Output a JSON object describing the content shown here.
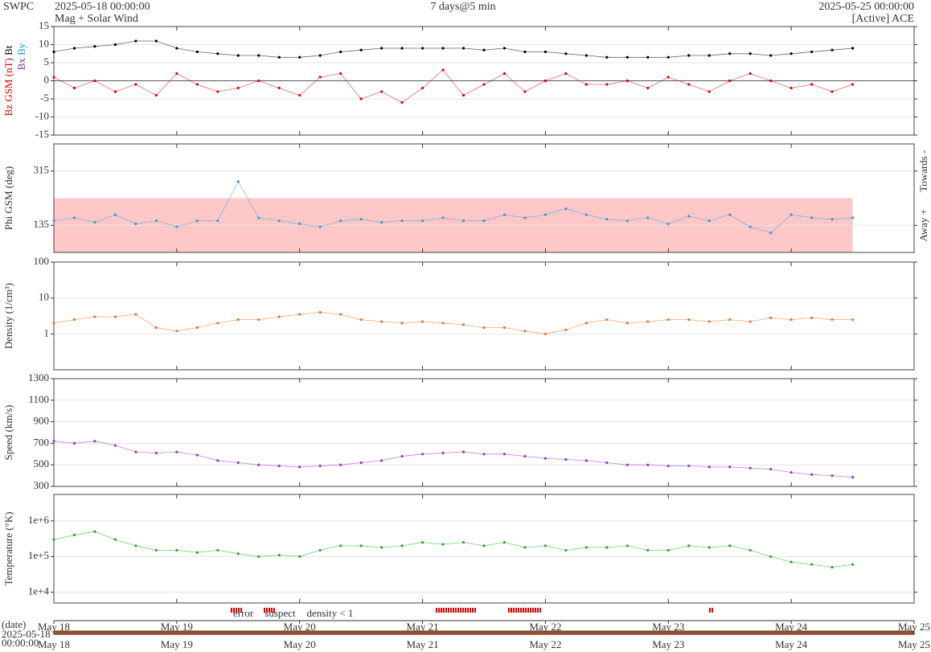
{
  "header": {
    "org": "SWPC",
    "start": "2025-05-18 00:00:00",
    "subtitle": "Mag + Solar Wind",
    "span": "7 days@5 min",
    "end": "2025-05-25 00:00:00",
    "source": "[Active] ACE"
  },
  "time_axis": {
    "xlim": [
      0,
      168
    ],
    "xticks": [
      {
        "value": 0,
        "label": "May 18"
      },
      {
        "value": 24,
        "label": "May 19"
      },
      {
        "value": 48,
        "label": "May 20"
      },
      {
        "value": 72,
        "label": "May 21"
      },
      {
        "value": 96,
        "label": "May 22"
      },
      {
        "value": 120,
        "label": "May 23"
      },
      {
        "value": 144,
        "label": "May 24"
      },
      {
        "value": 168,
        "label": "May 25"
      }
    ],
    "xlabel": "(date)",
    "start_label": [
      "2025-05-18",
      "00:00:00"
    ]
  },
  "flags": [
    {
      "name": "error",
      "color": "#e00000"
    },
    {
      "name": "suspect",
      "color": "#f0a000"
    },
    {
      "name": "density < 1",
      "color": "#f07020"
    }
  ],
  "chart_data": [
    {
      "type": "line",
      "ylim": [
        -15,
        15
      ],
      "yticks": [
        -15,
        -10,
        -5,
        0,
        5,
        10,
        15
      ],
      "hline": 0,
      "grid": true,
      "x": [
        0,
        4,
        8,
        12,
        16,
        20,
        24,
        28,
        32,
        36,
        40,
        44,
        48,
        52,
        56,
        60,
        64,
        68,
        72,
        76,
        80,
        84,
        88,
        92,
        96,
        100,
        104,
        108,
        112,
        116,
        120,
        124,
        128,
        132,
        136,
        140,
        144,
        148,
        152,
        156
      ],
      "series": [
        {
          "name": "Bt",
          "color": "#000000",
          "values": [
            8,
            9,
            9.5,
            10,
            11,
            11,
            9,
            8,
            7.5,
            7,
            7,
            6.5,
            6.5,
            7,
            8,
            8.5,
            9,
            9,
            9,
            9,
            9,
            8.5,
            9,
            8,
            8,
            7.5,
            7,
            6.5,
            6.5,
            6.5,
            6.5,
            7,
            7,
            7.5,
            7.5,
            7,
            7.5,
            8,
            8.5,
            9
          ]
        },
        {
          "name": "Bz GSM (nT)",
          "color": "#e00000",
          "values": [
            1,
            -2,
            0,
            -3,
            -1,
            -4,
            2,
            -1,
            -3,
            -2,
            0,
            -2,
            -4,
            1,
            2,
            -5,
            -3,
            -6,
            -2,
            3,
            -4,
            -1,
            2,
            -3,
            0,
            2,
            -1,
            -1,
            0,
            -2,
            1,
            -1,
            -3,
            0,
            2,
            0,
            -2,
            -1,
            -3,
            -1
          ]
        }
      ],
      "legend_extra": [
        {
          "name": "Bx",
          "color": "#7030a0"
        },
        {
          "name": "By",
          "color": "#00a0e0"
        }
      ]
    },
    {
      "type": "line",
      "ylim": [
        45,
        405
      ],
      "yticks": [
        135,
        315
      ],
      "ylabel": "Phi GSM (deg)",
      "ylabel_color": "#3399dd",
      "grid": true,
      "band": [
        45,
        225
      ],
      "band_color": "#ffc8c8",
      "side_labels": [
        "Away +",
        "Towards -"
      ],
      "x": [
        0,
        4,
        8,
        12,
        16,
        20,
        24,
        28,
        32,
        36,
        40,
        44,
        48,
        52,
        56,
        60,
        64,
        68,
        72,
        76,
        80,
        84,
        88,
        92,
        96,
        100,
        104,
        108,
        112,
        116,
        120,
        124,
        128,
        132,
        136,
        140,
        144,
        148,
        152,
        156
      ],
      "series": [
        {
          "name": "Phi",
          "color": "#3399dd",
          "values": [
            150,
            160,
            145,
            170,
            140,
            150,
            130,
            150,
            150,
            280,
            160,
            150,
            140,
            130,
            150,
            155,
            145,
            150,
            150,
            160,
            150,
            150,
            170,
            160,
            170,
            190,
            170,
            155,
            150,
            160,
            140,
            165,
            150,
            170,
            130,
            110,
            170,
            160,
            155,
            160
          ]
        }
      ]
    },
    {
      "type": "line",
      "log": true,
      "ylim": [
        0.1,
        100
      ],
      "yticks": [
        1,
        10,
        100
      ],
      "ylabel": "Density (1/cm³)",
      "ylabel_color": "#f07020",
      "grid": true,
      "x": [
        0,
        4,
        8,
        12,
        16,
        20,
        24,
        28,
        32,
        36,
        40,
        44,
        48,
        52,
        56,
        60,
        64,
        68,
        72,
        76,
        80,
        84,
        88,
        92,
        96,
        100,
        104,
        108,
        112,
        116,
        120,
        124,
        128,
        132,
        136,
        140,
        144,
        148,
        152,
        156
      ],
      "series": [
        {
          "name": "Density",
          "color": "#f07020",
          "values": [
            2,
            2.5,
            3,
            3,
            3.5,
            1.5,
            1.2,
            1.5,
            2,
            2.5,
            2.5,
            3,
            3.5,
            4,
            3.5,
            2.5,
            2.2,
            2,
            2.2,
            2,
            1.8,
            1.5,
            1.5,
            1.2,
            1,
            1.3,
            2,
            2.5,
            2,
            2.2,
            2.5,
            2.5,
            2.2,
            2.5,
            2.2,
            2.8,
            2.5,
            2.8,
            2.5,
            2.5
          ]
        }
      ]
    },
    {
      "type": "line",
      "ylim": [
        300,
        1300
      ],
      "yticks": [
        300,
        500,
        700,
        900,
        1100,
        1300
      ],
      "ylabel": "Speed (km/s)",
      "ylabel_color": "#9933cc",
      "grid": true,
      "x": [
        0,
        4,
        8,
        12,
        16,
        20,
        24,
        28,
        32,
        36,
        40,
        44,
        48,
        52,
        56,
        60,
        64,
        68,
        72,
        76,
        80,
        84,
        88,
        92,
        96,
        100,
        104,
        108,
        112,
        116,
        120,
        124,
        128,
        132,
        136,
        140,
        144,
        148,
        152,
        156
      ],
      "series": [
        {
          "name": "Speed",
          "color": "#9933cc",
          "values": [
            720,
            700,
            720,
            680,
            620,
            610,
            620,
            590,
            540,
            520,
            500,
            490,
            480,
            490,
            500,
            520,
            540,
            580,
            600,
            610,
            620,
            600,
            600,
            580,
            560,
            550,
            540,
            520,
            500,
            500,
            490,
            490,
            480,
            480,
            470,
            460,
            430,
            410,
            400,
            385
          ]
        }
      ]
    },
    {
      "type": "line",
      "log": true,
      "ylim": [
        5000,
        5500000
      ],
      "yticks": [
        {
          "value": 10000,
          "label": "1e+4"
        },
        {
          "value": 100000,
          "label": "1e+5"
        },
        {
          "value": 1000000,
          "label": "1e+6"
        }
      ],
      "ylabel": "Temperature (°K)",
      "ylabel_color": "#22aa22",
      "grid": true,
      "x": [
        0,
        4,
        8,
        12,
        16,
        20,
        24,
        28,
        32,
        36,
        40,
        44,
        48,
        52,
        56,
        60,
        64,
        68,
        72,
        76,
        80,
        84,
        88,
        92,
        96,
        100,
        104,
        108,
        112,
        116,
        120,
        124,
        128,
        132,
        136,
        140,
        144,
        148,
        152,
        156
      ],
      "series": [
        {
          "name": "Temperature",
          "color": "#22aa22",
          "values": [
            300000,
            400000,
            500000,
            300000,
            200000,
            150000,
            150000,
            130000,
            150000,
            120000,
            100000,
            110000,
            100000,
            150000,
            200000,
            200000,
            180000,
            200000,
            250000,
            220000,
            250000,
            200000,
            250000,
            180000,
            200000,
            150000,
            180000,
            180000,
            200000,
            150000,
            150000,
            200000,
            180000,
            200000,
            150000,
            100000,
            70000,
            60000,
            50000,
            60000
          ]
        }
      ]
    }
  ]
}
